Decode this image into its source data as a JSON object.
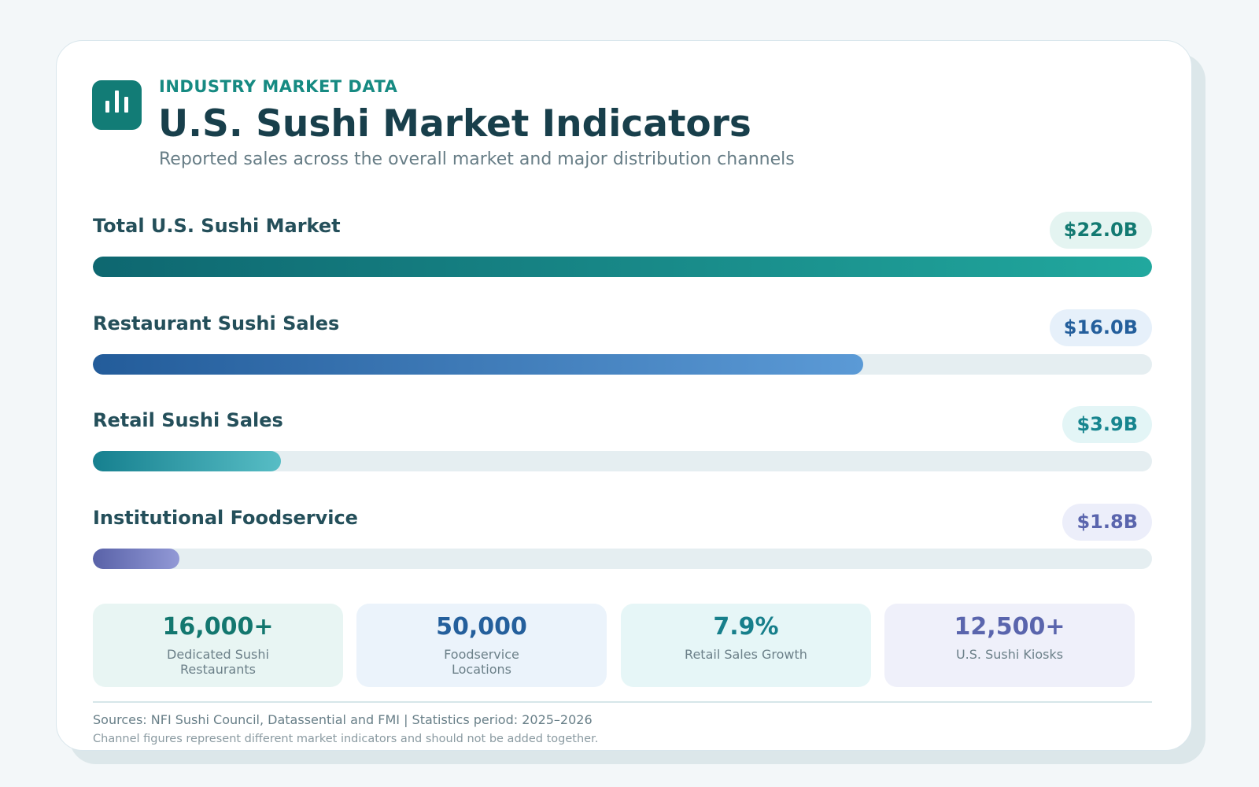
{
  "header": {
    "eyebrow": "INDUSTRY MARKET DATA",
    "title": "U.S. Sushi Market Indicators",
    "subtitle": "Reported sales across the overall market and major distribution channels",
    "logo_icon": "bar-chart-icon"
  },
  "chart_data": {
    "type": "bar",
    "orientation": "horizontal",
    "unit": "USD billions",
    "xlim": [
      0,
      22.0
    ],
    "categories": [
      "Total U.S. Sushi Market",
      "Restaurant Sushi Sales",
      "Retail Sushi Sales",
      "Institutional Foodservice"
    ],
    "values": [
      22.0,
      16.0,
      3.9,
      1.8
    ],
    "value_labels": [
      "$22.0B",
      "$16.0B",
      "$3.9B",
      "$1.8B"
    ],
    "colors": [
      {
        "from": "#0e6770",
        "to": "#21a89e",
        "text": "#137a72",
        "badge": "#e4f4f1"
      },
      {
        "from": "#235c9a",
        "to": "#5b9ad6",
        "text": "#245f9c",
        "badge": "#e6f0fa"
      },
      {
        "from": "#16808f",
        "to": "#57bdc5",
        "text": "#17858f",
        "badge": "#e3f5f6"
      },
      {
        "from": "#5962a8",
        "to": "#9299d6",
        "text": "#5a65ad",
        "badge": "#eceefa"
      }
    ],
    "grid": false,
    "legend": "none"
  },
  "stats": [
    {
      "value": "16,000+",
      "label": "Dedicated Sushi Restaurants",
      "color": "#13776f",
      "bg": "#e8f5f3"
    },
    {
      "value": "50,000",
      "label": "Foodservice Locations",
      "color": "#245f9c",
      "bg": "#ebf3fb"
    },
    {
      "value": "7.9%",
      "label": "Retail Sales Growth",
      "color": "#177f8b",
      "bg": "#e6f6f7"
    },
    {
      "value": "12,500+",
      "label": "U.S. Sushi Kiosks",
      "color": "#5a65ad",
      "bg": "#eff0fa"
    }
  ],
  "footer": {
    "sources": "Sources: NFI Sushi Council, Datassential and FMI  |  Statistics period: 2025–2026",
    "note": "Channel figures represent different market indicators and should not be added together."
  }
}
